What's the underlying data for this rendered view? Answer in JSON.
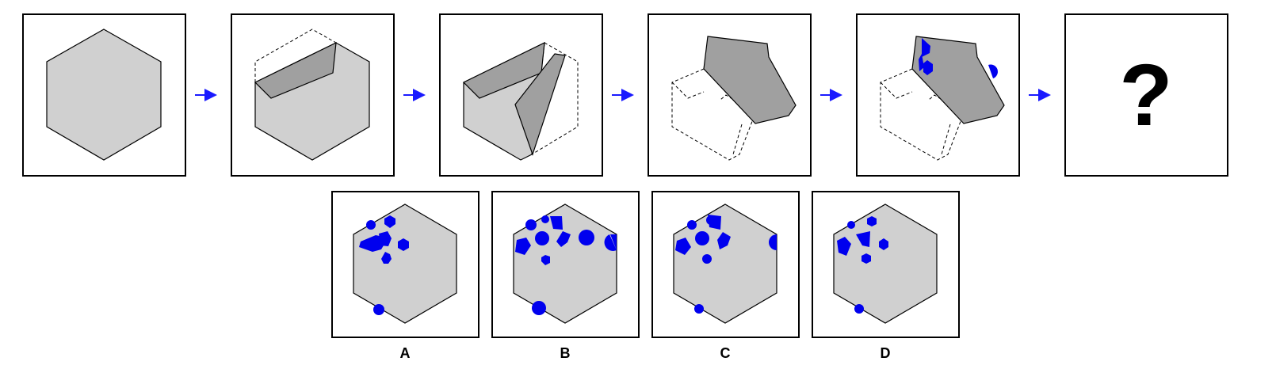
{
  "puzzle": {
    "question_mark": "?",
    "options": [
      {
        "label": "A"
      },
      {
        "label": "B"
      },
      {
        "label": "C"
      },
      {
        "label": "D"
      }
    ]
  },
  "colors": {
    "paper": "#d0d0d0",
    "fold": "#a0a0a0",
    "hole": "#0000ee",
    "arrow": "#1a1aff"
  }
}
